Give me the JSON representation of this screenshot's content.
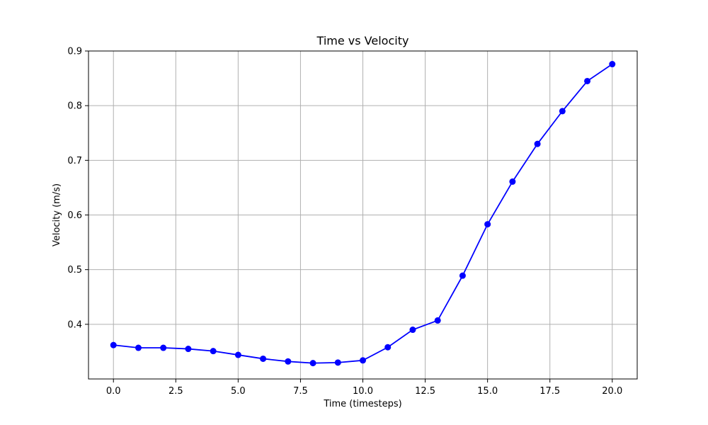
{
  "chart_data": {
    "type": "line",
    "title": "Time vs Velocity",
    "xlabel": "Time (timesteps)",
    "ylabel": "Velocity (m/s)",
    "xlim": [
      -1.0,
      21.0
    ],
    "ylim": [
      0.3,
      0.9
    ],
    "xticks": [
      0.0,
      2.5,
      5.0,
      7.5,
      10.0,
      12.5,
      15.0,
      17.5,
      20.0
    ],
    "xtick_labels": [
      "0.0",
      "2.5",
      "5.0",
      "7.5",
      "10.0",
      "12.5",
      "15.0",
      "17.5",
      "20.0"
    ],
    "yticks": [
      0.4,
      0.5,
      0.6,
      0.7,
      0.8,
      0.9
    ],
    "ytick_labels": [
      "0.4",
      "0.5",
      "0.6",
      "0.7",
      "0.8",
      "0.9"
    ],
    "grid": true,
    "series": [
      {
        "color": "#0000ff",
        "marker": "circle",
        "x": [
          0,
          1,
          2,
          3,
          4,
          5,
          6,
          7,
          8,
          9,
          10,
          11,
          12,
          13,
          14,
          15,
          16,
          17,
          18,
          19,
          20
        ],
        "values": [
          0.362,
          0.357,
          0.357,
          0.355,
          0.351,
          0.344,
          0.337,
          0.332,
          0.329,
          0.33,
          0.334,
          0.358,
          0.39,
          0.407,
          0.489,
          0.583,
          0.661,
          0.73,
          0.79,
          0.845,
          0.876
        ]
      }
    ]
  }
}
